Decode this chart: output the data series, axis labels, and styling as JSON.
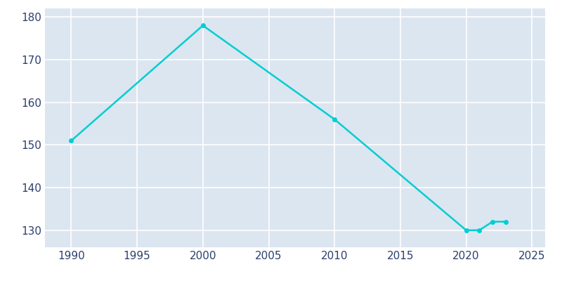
{
  "years": [
    1990,
    2000,
    2010,
    2020,
    2021,
    2022,
    2023
  ],
  "population": [
    151,
    178,
    156,
    130,
    130,
    132,
    132
  ],
  "line_color": "#00CED1",
  "bg_color": "#dce6f0",
  "fig_bg_color": "#ffffff",
  "grid_color": "#ffffff",
  "text_color": "#2d3f6e",
  "xlim": [
    1988,
    2026
  ],
  "ylim": [
    126,
    182
  ],
  "yticks": [
    130,
    140,
    150,
    160,
    170,
    180
  ],
  "xticks": [
    1990,
    1995,
    2000,
    2005,
    2010,
    2015,
    2020,
    2025
  ],
  "linewidth": 1.8,
  "marker": "o",
  "markersize": 4,
  "tick_labelsize": 11
}
